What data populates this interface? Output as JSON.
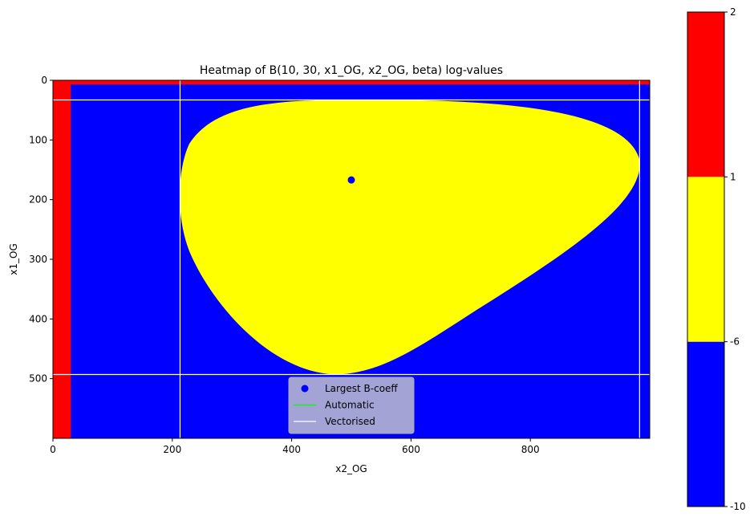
{
  "chart_data": {
    "type": "heatmap",
    "title": "Heatmap of B(10, 30, x1_OG, x2_OG, beta) log-values",
    "xlabel": "x2_OG",
    "ylabel": "x1_OG",
    "xlim": [
      0,
      1000
    ],
    "ylim": [
      600,
      0
    ],
    "x_ticks": [
      0,
      200,
      400,
      600,
      800
    ],
    "y_ticks": [
      0,
      100,
      200,
      300,
      400,
      500
    ],
    "colorbar": {
      "ticks": [
        "-10",
        "-6",
        "1",
        "2"
      ],
      "levels": [
        -10,
        -6,
        1,
        2
      ],
      "colors": [
        "#0000ff",
        "#ffff00",
        "#ff0000"
      ]
    },
    "regions": {
      "background_value": "blue",
      "red_strip_left_x_max": 30,
      "red_strip_top_y_max": 7,
      "yellow_region": {
        "x_range": [
          213,
          983
        ],
        "y_range": [
          33,
          493
        ]
      }
    },
    "largest_b_coeff": {
      "x": 500,
      "y": 167
    },
    "vectorised_lines": {
      "vertical_x": [
        213,
        983
      ],
      "horizontal_y": [
        33,
        493
      ]
    },
    "legend": {
      "placement": "lower center",
      "entries": [
        {
          "label": "Largest B-coeff",
          "marker": "circle",
          "color": "#0000ff"
        },
        {
          "label": "Automatic",
          "marker": "line",
          "color": "#00ff00"
        },
        {
          "label": "Vectorised",
          "marker": "line",
          "color": "#ffffff"
        }
      ]
    }
  }
}
